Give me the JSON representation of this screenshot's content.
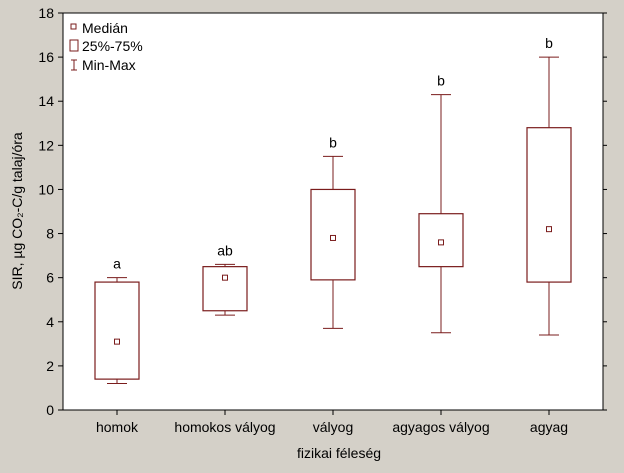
{
  "colors": {
    "background": "#d4d0c8",
    "plot_background": "#ffffff",
    "box_stroke": "#7a1c1c",
    "axis": "#000000"
  },
  "chart_data": {
    "type": "boxplot",
    "xlabel": "fizikai féleség",
    "ylabel": "SIR, µg CO₂-C/g talaj/óra",
    "ylim": [
      0,
      18
    ],
    "yticks": [
      0,
      2,
      4,
      6,
      8,
      10,
      12,
      14,
      16,
      18
    ],
    "grid": false,
    "legend_position": "top-left",
    "legend": [
      {
        "symbol": "median-square-icon",
        "label": "Medián"
      },
      {
        "symbol": "box-rect-icon",
        "label": "25%-75%"
      },
      {
        "symbol": "whisker-icon",
        "label": "Min-Max"
      }
    ],
    "categories": [
      "homok",
      "homokos vályog",
      "vályog",
      "agyagos vályog",
      "agyag"
    ],
    "median": [
      3.1,
      6.0,
      7.8,
      7.6,
      8.2
    ],
    "q1": [
      1.4,
      4.5,
      5.9,
      6.5,
      5.8
    ],
    "q3": [
      5.8,
      6.5,
      10.0,
      8.9,
      12.8
    ],
    "min": [
      1.2,
      4.3,
      3.7,
      3.5,
      3.4
    ],
    "max": [
      6.0,
      6.6,
      11.5,
      14.3,
      16.0
    ],
    "significance": [
      "a",
      "ab",
      "b",
      "b",
      "b"
    ]
  }
}
